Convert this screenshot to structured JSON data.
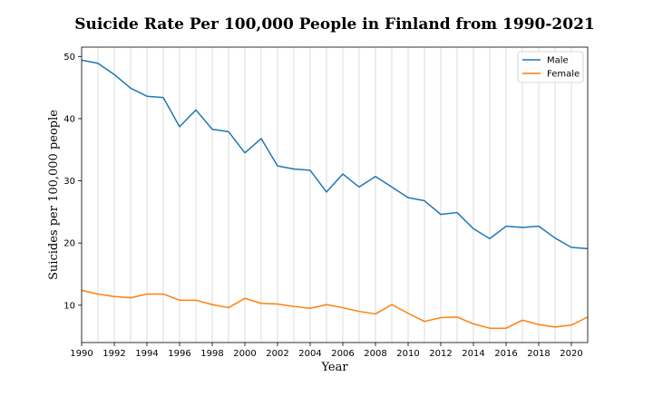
{
  "chart_data": {
    "type": "line",
    "title": "Suicide Rate Per 100,000 People in Finland from 1990-2021",
    "xlabel": "Year",
    "ylabel": "Suicides per 100,000 people",
    "x": [
      1990,
      1991,
      1992,
      1993,
      1994,
      1995,
      1996,
      1997,
      1998,
      1999,
      2000,
      2001,
      2002,
      2003,
      2004,
      2005,
      2006,
      2007,
      2008,
      2009,
      2010,
      2011,
      2012,
      2013,
      2014,
      2015,
      2016,
      2017,
      2018,
      2019,
      2020,
      2021
    ],
    "xlim": [
      1990,
      2021
    ],
    "ylim": [
      4,
      51.5
    ],
    "xticks": [
      "1990",
      "1992",
      "1994",
      "1996",
      "1998",
      "2000",
      "2002",
      "2004",
      "2006",
      "2008",
      "2010",
      "2012",
      "2014",
      "2016",
      "2018",
      "2020"
    ],
    "yticks": [
      "10",
      "20",
      "30",
      "40",
      "50"
    ],
    "grid": "vertical lines at every year",
    "legend_position": "top-right",
    "series": [
      {
        "name": "Male",
        "color": "#1f77b4",
        "values": [
          49.4,
          48.9,
          47.1,
          44.9,
          43.6,
          43.4,
          38.7,
          41.4,
          38.3,
          37.9,
          34.5,
          36.8,
          32.4,
          31.9,
          31.7,
          28.2,
          31.1,
          29.0,
          30.7,
          29.0,
          27.3,
          26.8,
          24.6,
          24.9,
          22.3,
          20.7,
          22.7,
          22.5,
          22.7,
          20.8,
          19.3,
          19.1
        ]
      },
      {
        "name": "Female",
        "color": "#ff7f0e",
        "values": [
          12.4,
          11.8,
          11.4,
          11.2,
          11.8,
          11.8,
          10.8,
          10.8,
          10.1,
          9.6,
          11.1,
          10.3,
          10.2,
          9.8,
          9.5,
          10.1,
          9.6,
          9.0,
          8.6,
          10.1,
          8.7,
          7.4,
          8.0,
          8.1,
          7.0,
          6.3,
          6.3,
          7.6,
          6.9,
          6.5,
          6.8,
          8.1
        ]
      }
    ]
  }
}
